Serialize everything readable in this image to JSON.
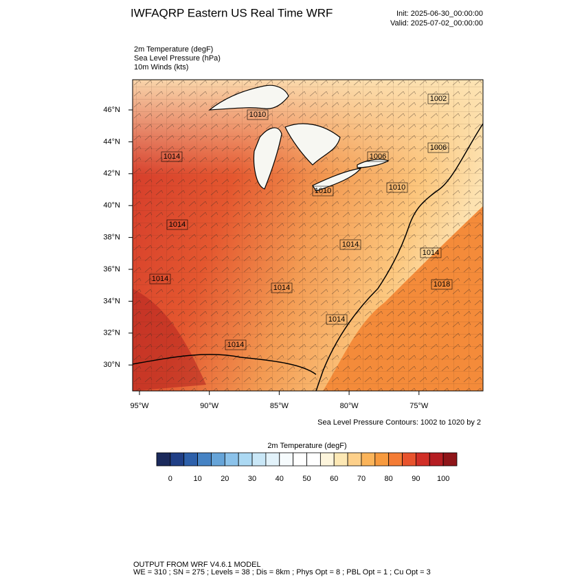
{
  "header": {
    "title": "IWFAQRP Eastern US Real Time WRF",
    "init": "Init: 2025-06-30_00:00:00",
    "valid": "Valid: 2025-07-02_00:00:00"
  },
  "fields": [
    "2m Temperature   (degF)",
    "Sea Level Pressure   (hPa)",
    "10m Winds   (kts)"
  ],
  "map": {
    "lat_labels": [
      "46°N",
      "44°N",
      "42°N",
      "40°N",
      "38°N",
      "36°N",
      "34°N",
      "32°N",
      "30°N"
    ],
    "lon_labels": [
      "95°W",
      "90°W",
      "85°W",
      "80°W",
      "75°W"
    ],
    "pressure_labels": [
      "1002",
      "1010",
      "1014",
      "1006",
      "1006",
      "1010",
      "1010",
      "1014",
      "1014",
      "1014",
      "1014",
      "1018",
      "1014",
      "1014",
      "1014"
    ]
  },
  "contour_note": "Sea Level Pressure Contours: 1002 to 1020 by 2",
  "colorbar": {
    "title": "2m Temperature  (degF)",
    "colors": [
      "#1b2a5c",
      "#203f86",
      "#2d60aa",
      "#4683c4",
      "#66a4d8",
      "#8bc2ea",
      "#acd9f3",
      "#c9e7f7",
      "#e2f2fa",
      "#f6fbfd",
      "#ffffff",
      "#ffffff",
      "#fdf5dc",
      "#fde8b4",
      "#fdd08a",
      "#fbb45a",
      "#f79a3e",
      "#f47c35",
      "#e8532d",
      "#d12f27",
      "#b51d22",
      "#8f1519"
    ],
    "ticks": [
      0,
      10,
      20,
      30,
      40,
      50,
      60,
      70,
      80,
      90,
      100
    ]
  },
  "footer": [
    "OUTPUT FROM WRF V4.6.1 MODEL",
    "WE = 310 ; SN = 275 ; Levels = 38 ; Dis = 8km ; Phys Opt = 8 ; PBL Opt = 1 ; Cu Opt = 3"
  ]
}
